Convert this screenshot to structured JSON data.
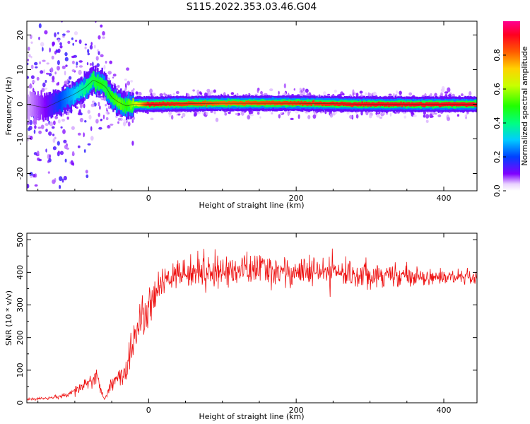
{
  "figure": {
    "title": "S115.2022.353.03.46.G04"
  },
  "chart_data": [
    {
      "type": "heatmap",
      "xlabel": "Height of straight line (km)",
      "ylabel": "Frequency (Hz)",
      "xlim": [
        -165,
        445
      ],
      "ylim": [
        -25,
        24
      ],
      "xticks": [
        0,
        200,
        400
      ],
      "yticks": [
        -20,
        -10,
        0,
        10,
        20
      ],
      "grid": false,
      "colorbar": {
        "label": "Normalized spectral amplitude",
        "range": [
          0,
          1
        ],
        "ticks": [
          "0.0",
          "0.2",
          "0.4",
          "0.6",
          "0.8"
        ],
        "tick_values": [
          0,
          0.2,
          0.4,
          0.6,
          0.8
        ],
        "colormap": "gist_rainbow_r"
      },
      "ridge": {
        "description_points_x": [
          -165,
          -140,
          -120,
          -100,
          -85,
          -75,
          -65,
          -58,
          -50,
          -40,
          -30,
          -20,
          0,
          100,
          200,
          300,
          445
        ],
        "description_points_y": [
          0,
          -1,
          1,
          3,
          5,
          7,
          6,
          5,
          2,
          0.5,
          -0.5,
          0,
          0,
          0.3,
          0.3,
          0,
          0
        ],
        "amplitude": [
          0.05,
          0.1,
          0.2,
          0.3,
          0.4,
          0.45,
          0.5,
          0.45,
          0.5,
          0.55,
          0.5,
          0.6,
          0.9,
          0.8,
          0.85,
          0.9,
          0.9
        ]
      }
    },
    {
      "type": "line",
      "xlabel": "Height of straight line (km)",
      "ylabel": "SNR (10 * v/v)",
      "xlim": [
        -165,
        445
      ],
      "ylim": [
        0,
        520
      ],
      "xticks": [
        0,
        200,
        400
      ],
      "yticks": [
        0,
        100,
        200,
        300,
        400,
        500
      ],
      "grid": false,
      "series": [
        {
          "color": "#ee1111",
          "x": [
            -165,
            -150,
            -130,
            -110,
            -100,
            -90,
            -80,
            -70,
            -65,
            -60,
            -50,
            -40,
            -30,
            -25,
            -20,
            -15,
            -10,
            -5,
            0,
            10,
            20,
            30,
            50,
            80,
            100,
            150,
            200,
            250,
            300,
            350,
            400,
            445
          ],
          "y": [
            10,
            12,
            15,
            22,
            35,
            50,
            65,
            80,
            40,
            10,
            60,
            80,
            90,
            160,
            200,
            230,
            260,
            250,
            290,
            330,
            370,
            390,
            400,
            400,
            405,
            410,
            400,
            400,
            395,
            390,
            385,
            380
          ],
          "noise": [
            3,
            3,
            4,
            8,
            14,
            18,
            22,
            25,
            10,
            4,
            20,
            30,
            40,
            60,
            50,
            45,
            50,
            55,
            50,
            45,
            40,
            38,
            40,
            45,
            45,
            45,
            42,
            40,
            38,
            25,
            22,
            20
          ]
        }
      ]
    }
  ]
}
